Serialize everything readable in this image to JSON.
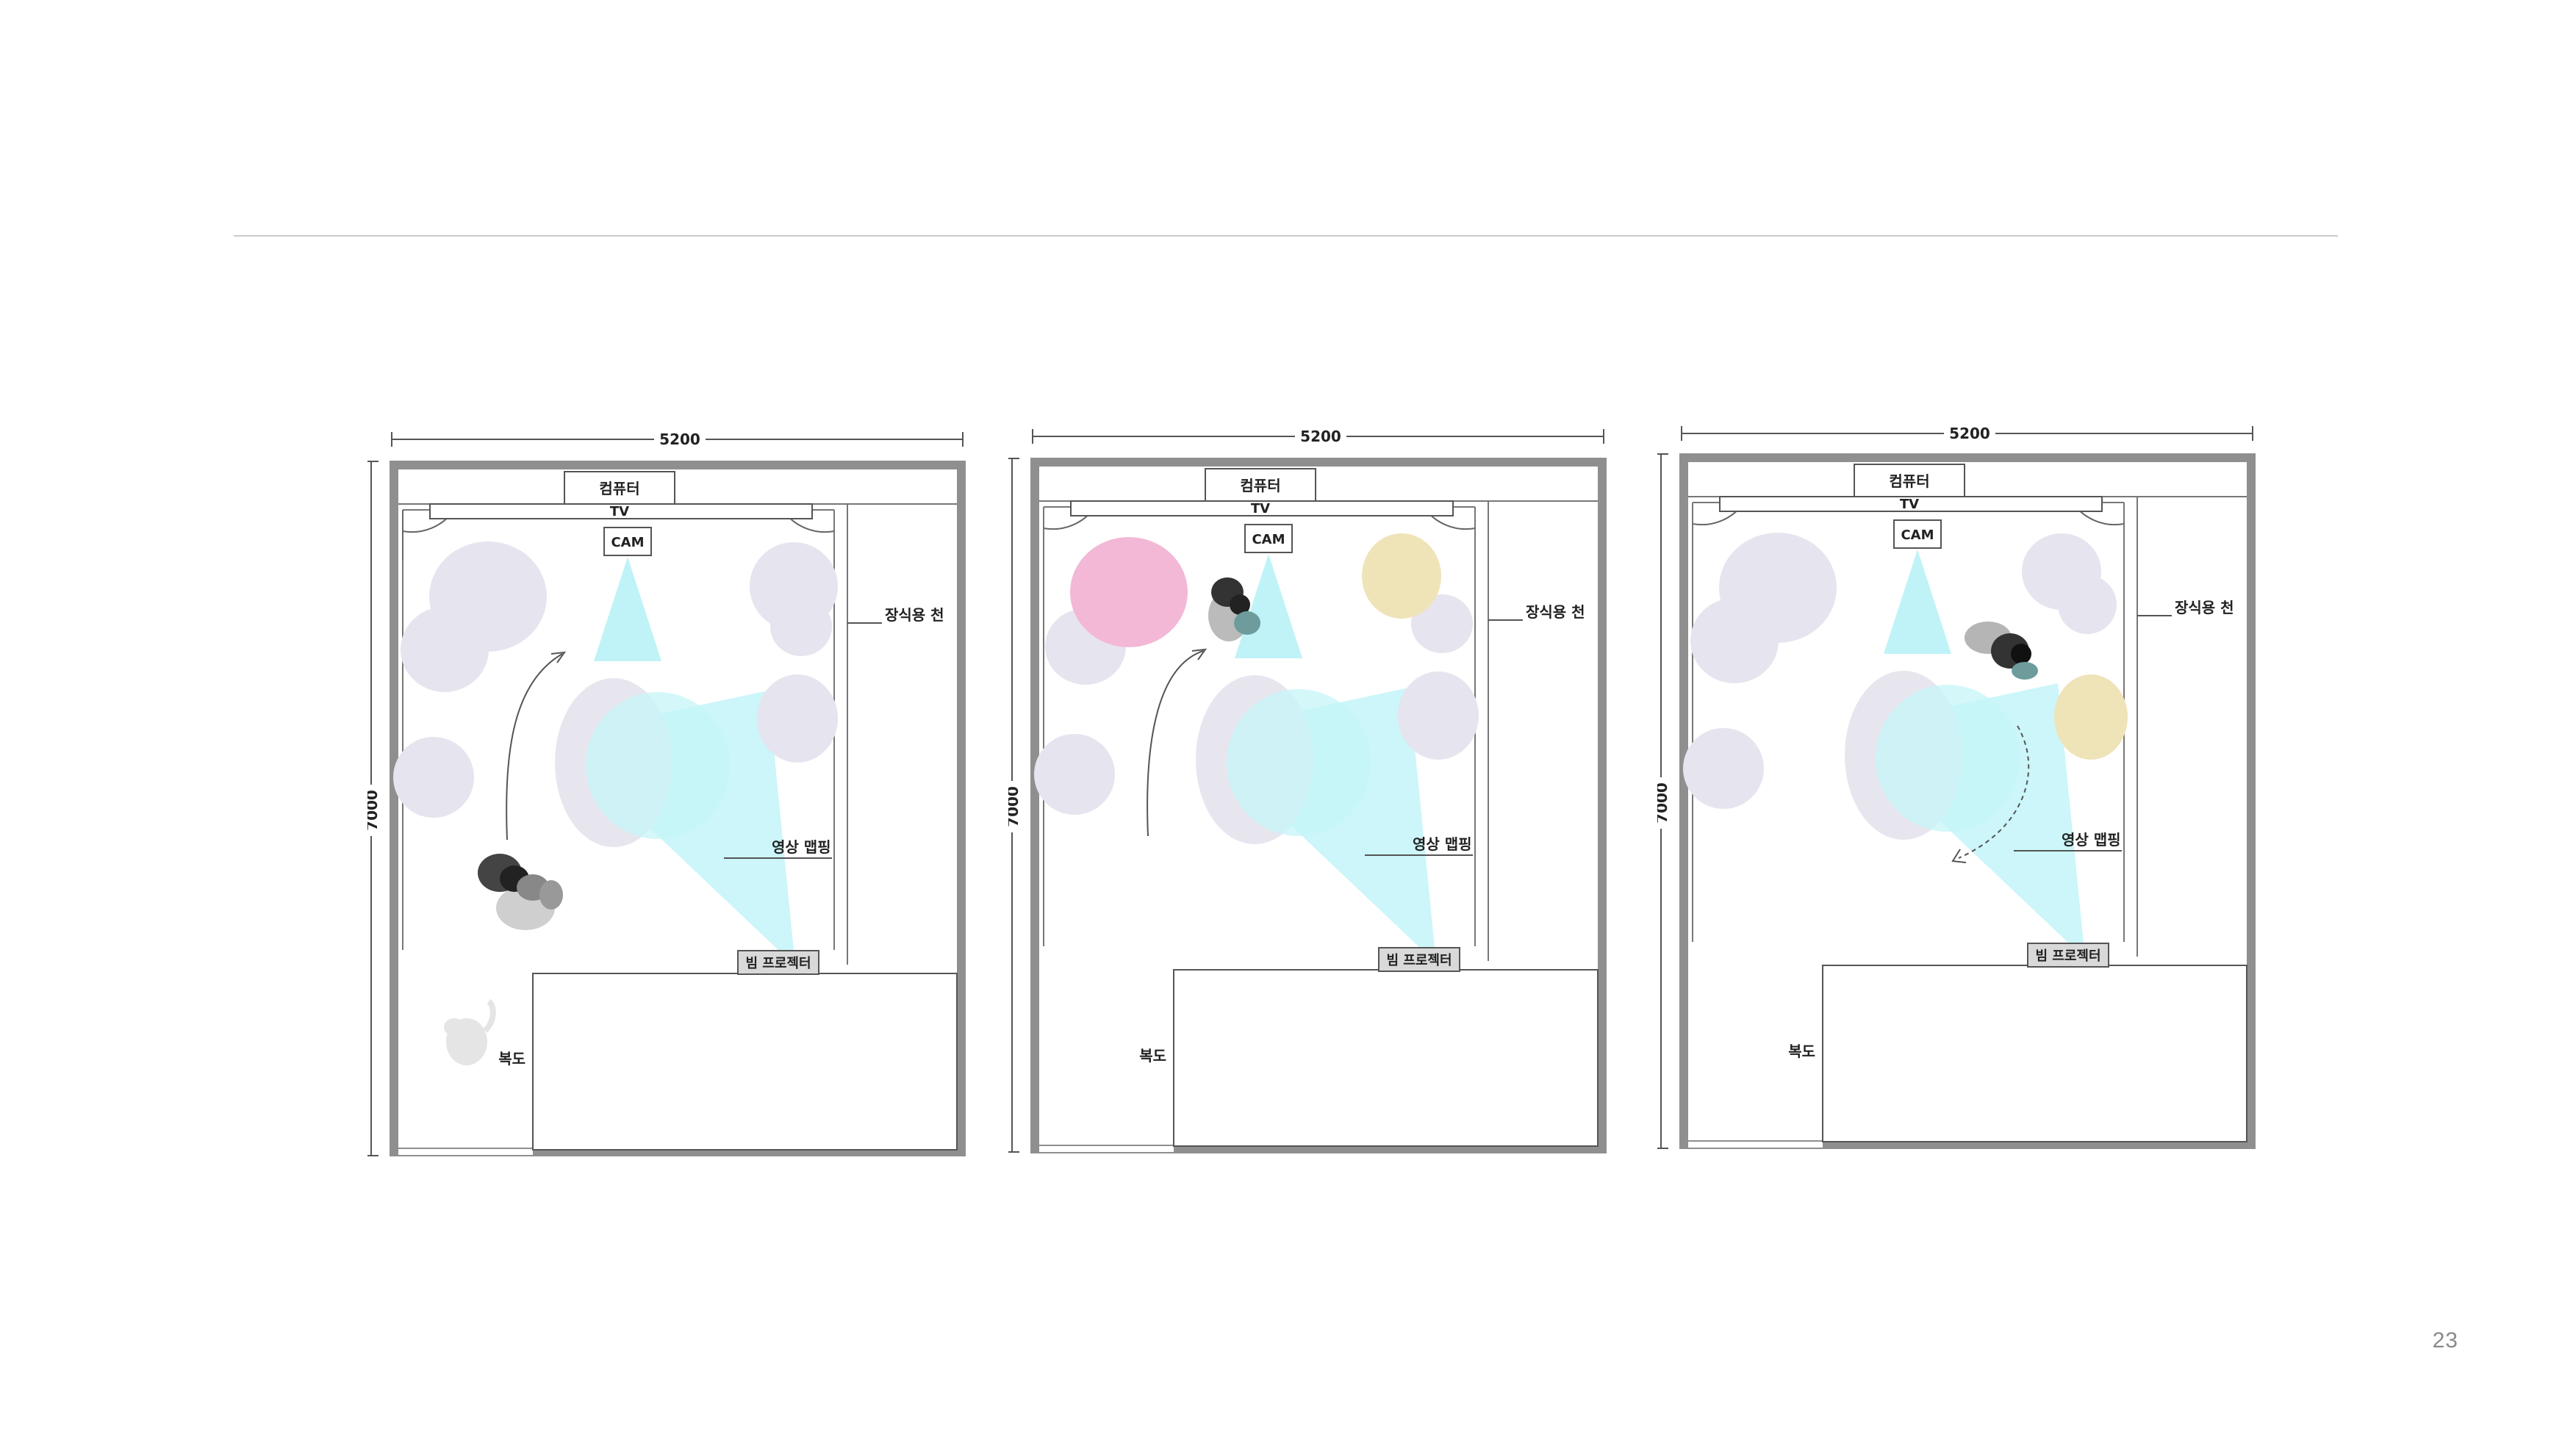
{
  "page": {
    "number": "23"
  },
  "plans": [
    {
      "width_dim": "5200",
      "height_dim": "7000",
      "labels": {
        "computer": "컴퓨터",
        "tv": "TV",
        "cam": "CAM",
        "curtain": "장식용 천",
        "mapping": "영상 맵핑",
        "projector": "빔 프로젝터",
        "corridor": "복도"
      },
      "colored_clouds": [],
      "cat_shown": true
    },
    {
      "width_dim": "5200",
      "height_dim": "7000",
      "labels": {
        "computer": "컴퓨터",
        "tv": "TV",
        "cam": "CAM",
        "curtain": "장식용 천",
        "mapping": "영상 맵핑",
        "projector": "빔 프로젝터",
        "corridor": "복도"
      },
      "colored_clouds": [
        {
          "color": "#f2b8d6"
        },
        {
          "color": "#efe3b8"
        }
      ],
      "cat_shown": false
    },
    {
      "width_dim": "5200",
      "height_dim": "7000",
      "labels": {
        "computer": "컴퓨터",
        "tv": "TV",
        "cam": "CAM",
        "curtain": "장식용 천",
        "mapping": "영상 맵핑",
        "projector": "빔 프로젝터",
        "corridor": "복도"
      },
      "colored_clouds": [
        {
          "color": "#efe3b8"
        }
      ],
      "cat_shown": false
    }
  ],
  "colors": {
    "wall": "#8f8f8f",
    "light_cone": "#bff3f7",
    "cloud": "#e6e4ee"
  }
}
